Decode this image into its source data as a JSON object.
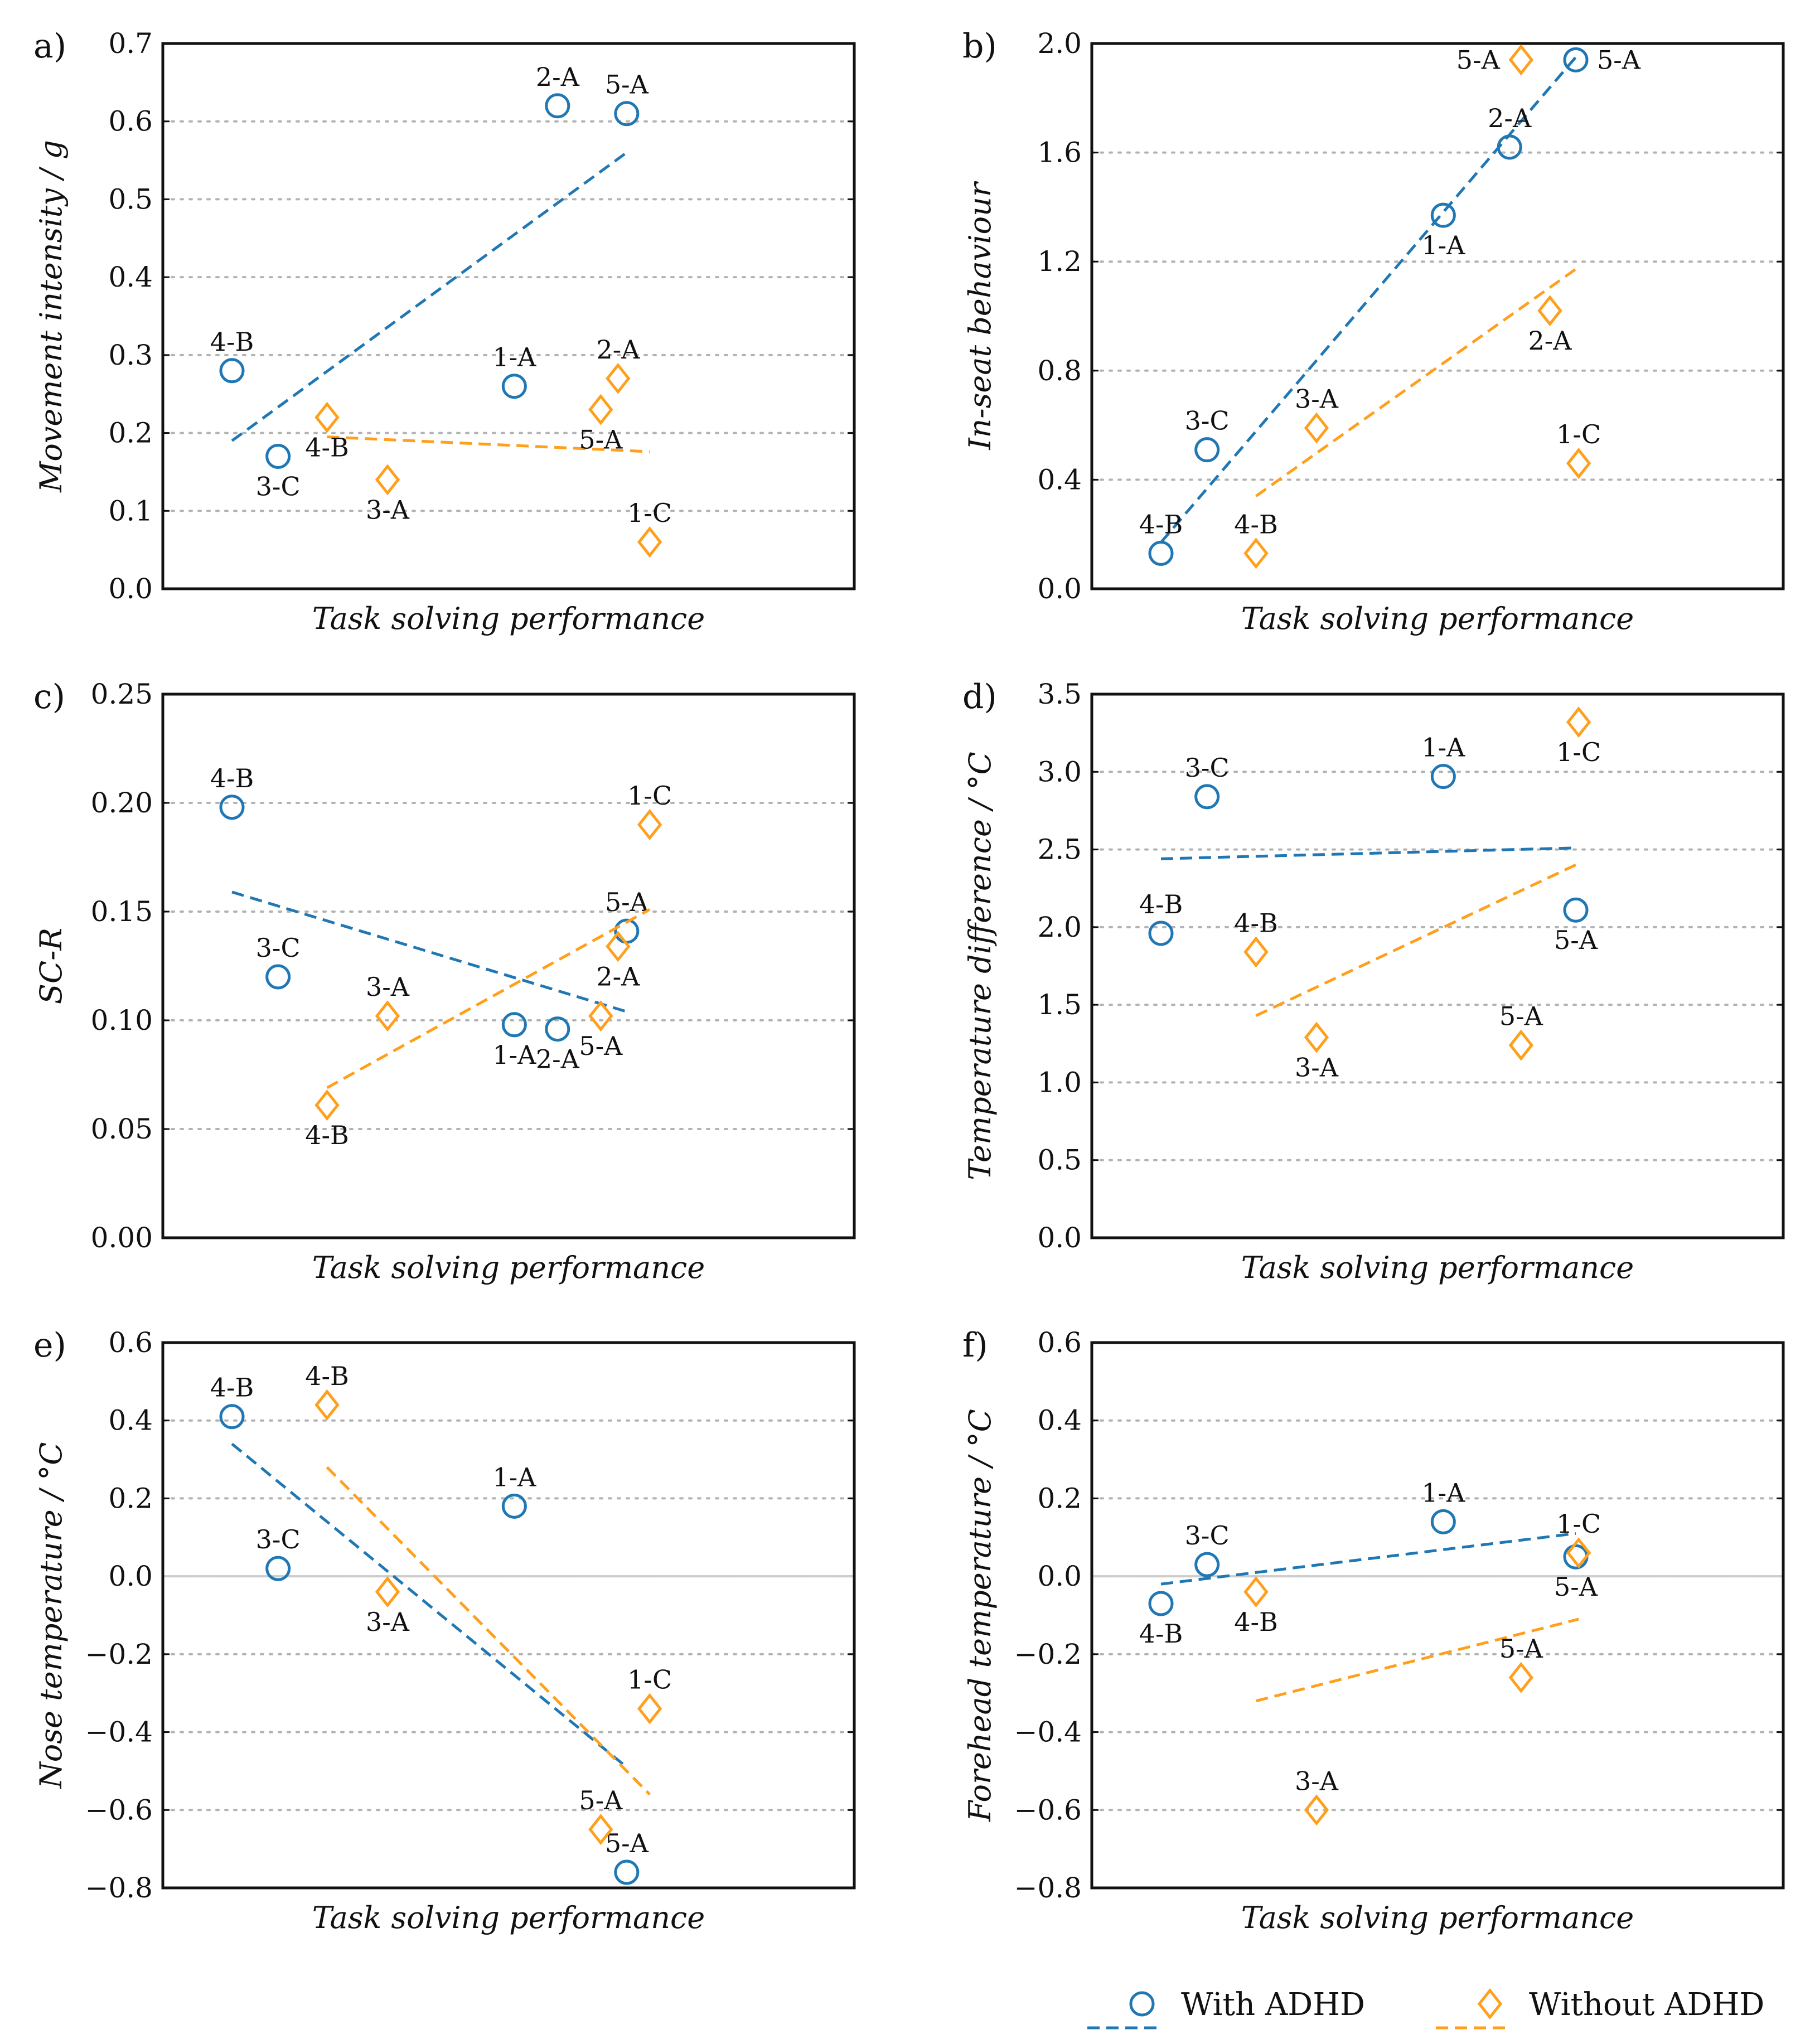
{
  "figure": {
    "series": [
      {
        "key": "adhd",
        "name": "With ADHD",
        "marker": "circle",
        "color": "#1f77b4"
      },
      {
        "key": "non",
        "name": "Without ADHD",
        "marker": "diamond",
        "color": "#ff9f1c"
      }
    ],
    "x_axis_label": "Task solving performance"
  },
  "chart_data": [
    {
      "panel": "a)",
      "type": "scatter",
      "ylabel": "Movement intensity / g",
      "xlabel": "Task solving performance",
      "ylim": [
        0,
        0.7
      ],
      "yticks": [
        "0.0",
        "0.1",
        "0.2",
        "0.3",
        "0.4",
        "0.5",
        "0.6",
        "0.7"
      ],
      "xlim": [
        0,
        12
      ],
      "zero_line": false,
      "series": [
        {
          "name": "With ADHD",
          "points": [
            {
              "x": 1.2,
              "y": 0.28,
              "label": "4-B",
              "pos": "above"
            },
            {
              "x": 2.0,
              "y": 0.17,
              "label": "3-C",
              "pos": "below"
            },
            {
              "x": 6.1,
              "y": 0.26,
              "label": "1-A",
              "pos": "above"
            },
            {
              "x": 6.85,
              "y": 0.62,
              "label": "2-A",
              "pos": "above"
            },
            {
              "x": 8.05,
              "y": 0.61,
              "label": "5-A",
              "pos": "above"
            }
          ],
          "trend": [
            [
              1.2,
              0.19
            ],
            [
              8.05,
              0.56
            ]
          ]
        },
        {
          "name": "Without ADHD",
          "points": [
            {
              "x": 2.85,
              "y": 0.22,
              "label": "4-B",
              "pos": "below-left"
            },
            {
              "x": 3.9,
              "y": 0.14,
              "label": "3-A",
              "pos": "below"
            },
            {
              "x": 7.6,
              "y": 0.23,
              "label": "5-A",
              "pos": "below"
            },
            {
              "x": 7.9,
              "y": 0.27,
              "label": "2-A",
              "pos": "above"
            },
            {
              "x": 8.45,
              "y": 0.06,
              "label": "1-C",
              "pos": "above"
            }
          ],
          "trend": [
            [
              2.85,
              0.195
            ],
            [
              8.45,
              0.176
            ]
          ]
        }
      ]
    },
    {
      "panel": "b)",
      "type": "scatter",
      "ylabel": "In-seat behaviour",
      "xlabel": "Task solving performance",
      "ylim": [
        0,
        2.0
      ],
      "yticks": [
        "0.0",
        "0.4",
        "0.8",
        "1.2",
        "1.6",
        "2.0"
      ],
      "xlim": [
        0,
        12
      ],
      "zero_line": false,
      "series": [
        {
          "name": "With ADHD",
          "points": [
            {
              "x": 1.2,
              "y": 0.13,
              "label": "4-B",
              "pos": "above"
            },
            {
              "x": 2.0,
              "y": 0.51,
              "label": "3-C",
              "pos": "above"
            },
            {
              "x": 6.1,
              "y": 1.37,
              "label": "1-A",
              "pos": "below"
            },
            {
              "x": 7.25,
              "y": 1.62,
              "label": "2-A",
              "pos": "above"
            },
            {
              "x": 8.4,
              "y": 1.94,
              "label": "5-A",
              "pos": "right"
            }
          ],
          "trend": [
            [
              1.2,
              0.17
            ],
            [
              8.4,
              1.95
            ]
          ]
        },
        {
          "name": "Without ADHD",
          "points": [
            {
              "x": 2.85,
              "y": 0.13,
              "label": "4-B",
              "pos": "above"
            },
            {
              "x": 3.9,
              "y": 0.59,
              "label": "3-A",
              "pos": "above"
            },
            {
              "x": 7.95,
              "y": 1.02,
              "label": "2-A",
              "pos": "below"
            },
            {
              "x": 7.45,
              "y": 1.94,
              "label": "5-A",
              "pos": "left"
            },
            {
              "x": 8.45,
              "y": 0.46,
              "label": "1-C",
              "pos": "above"
            }
          ],
          "trend": [
            [
              2.85,
              0.34
            ],
            [
              8.45,
              1.18
            ]
          ]
        }
      ]
    },
    {
      "panel": "c)",
      "type": "scatter",
      "ylabel": "SC-R",
      "xlabel": "Task solving performance",
      "ylim": [
        0,
        0.25
      ],
      "yticks": [
        "0.00",
        "0.05",
        "0.10",
        "0.15",
        "0.20",
        "0.25"
      ],
      "xlim": [
        0,
        12
      ],
      "zero_line": false,
      "series": [
        {
          "name": "With ADHD",
          "points": [
            {
              "x": 1.2,
              "y": 0.198,
              "label": "4-B",
              "pos": "above"
            },
            {
              "x": 2.0,
              "y": 0.12,
              "label": "3-C",
              "pos": "above"
            },
            {
              "x": 6.1,
              "y": 0.098,
              "label": "1-A",
              "pos": "below"
            },
            {
              "x": 6.85,
              "y": 0.096,
              "label": "2-A",
              "pos": "below"
            },
            {
              "x": 8.05,
              "y": 0.141,
              "label": "5-A",
              "pos": "above"
            }
          ],
          "trend": [
            [
              1.2,
              0.159
            ],
            [
              8.05,
              0.104
            ]
          ]
        },
        {
          "name": "Without ADHD",
          "points": [
            {
              "x": 2.85,
              "y": 0.061,
              "label": "4-B",
              "pos": "below"
            },
            {
              "x": 3.9,
              "y": 0.102,
              "label": "3-A",
              "pos": "above"
            },
            {
              "x": 7.6,
              "y": 0.102,
              "label": "5-A",
              "pos": "below"
            },
            {
              "x": 7.9,
              "y": 0.134,
              "label": "2-A",
              "pos": "below"
            },
            {
              "x": 8.45,
              "y": 0.19,
              "label": "1-C",
              "pos": "above"
            }
          ],
          "trend": [
            [
              2.85,
              0.069
            ],
            [
              8.45,
              0.151
            ]
          ]
        }
      ]
    },
    {
      "panel": "d)",
      "type": "scatter",
      "ylabel": "Temperature difference / °C",
      "xlabel": "Task solving performance",
      "ylim": [
        0,
        3.5
      ],
      "yticks": [
        "0.0",
        "0.5",
        "1.0",
        "1.5",
        "2.0",
        "2.5",
        "3.0",
        "3.5"
      ],
      "xlim": [
        0,
        12
      ],
      "zero_line": false,
      "series": [
        {
          "name": "With ADHD",
          "points": [
            {
              "x": 1.2,
              "y": 1.96,
              "label": "4-B",
              "pos": "above"
            },
            {
              "x": 2.0,
              "y": 2.84,
              "label": "3-C",
              "pos": "above"
            },
            {
              "x": 6.1,
              "y": 2.97,
              "label": "1-A",
              "pos": "above"
            },
            {
              "x": 8.4,
              "y": 2.11,
              "label": "5-A",
              "pos": "below"
            }
          ],
          "trend": [
            [
              1.2,
              2.44
            ],
            [
              8.4,
              2.51
            ]
          ]
        },
        {
          "name": "Without ADHD",
          "points": [
            {
              "x": 2.85,
              "y": 1.84,
              "label": "4-B",
              "pos": "above"
            },
            {
              "x": 3.9,
              "y": 1.29,
              "label": "3-A",
              "pos": "below"
            },
            {
              "x": 7.45,
              "y": 1.24,
              "label": "5-A",
              "pos": "above"
            },
            {
              "x": 8.45,
              "y": 3.32,
              "label": "1-C",
              "pos": "below"
            }
          ],
          "trend": [
            [
              2.85,
              1.43
            ],
            [
              8.45,
              2.41
            ]
          ]
        }
      ]
    },
    {
      "panel": "e)",
      "type": "scatter",
      "ylabel": "Nose temperature / °C",
      "xlabel": "Task solving performance",
      "ylim": [
        -0.8,
        0.6
      ],
      "yticks": [
        "−0.8",
        "−0.6",
        "−0.4",
        "−0.2",
        "0.0",
        "0.2",
        "0.4",
        "0.6"
      ],
      "xlim": [
        0,
        12
      ],
      "zero_line": true,
      "series": [
        {
          "name": "With ADHD",
          "points": [
            {
              "x": 1.2,
              "y": 0.41,
              "label": "4-B",
              "pos": "above"
            },
            {
              "x": 2.0,
              "y": 0.02,
              "label": "3-C",
              "pos": "above"
            },
            {
              "x": 6.1,
              "y": 0.18,
              "label": "1-A",
              "pos": "above"
            },
            {
              "x": 8.05,
              "y": -0.76,
              "label": "5-A",
              "pos": "above"
            }
          ],
          "trend": [
            [
              1.2,
              0.34
            ],
            [
              8.05,
              -0.49
            ]
          ]
        },
        {
          "name": "Without ADHD",
          "points": [
            {
              "x": 2.85,
              "y": 0.44,
              "label": "4-B",
              "pos": "above"
            },
            {
              "x": 3.9,
              "y": -0.04,
              "label": "3-A",
              "pos": "below"
            },
            {
              "x": 7.6,
              "y": -0.65,
              "label": "5-A",
              "pos": "above"
            },
            {
              "x": 8.45,
              "y": -0.34,
              "label": "1-C",
              "pos": "above"
            }
          ],
          "trend": [
            [
              2.85,
              0.28
            ],
            [
              8.45,
              -0.56
            ]
          ]
        }
      ]
    },
    {
      "panel": "f)",
      "type": "scatter",
      "ylabel": "Forehead temperature / °C",
      "xlabel": "Task solving performance",
      "ylim": [
        -0.8,
        0.6
      ],
      "yticks": [
        "−0.8",
        "−0.6",
        "−0.4",
        "−0.2",
        "0.0",
        "0.2",
        "0.4",
        "0.6"
      ],
      "xlim": [
        0,
        12
      ],
      "zero_line": true,
      "series": [
        {
          "name": "With ADHD",
          "points": [
            {
              "x": 1.2,
              "y": -0.07,
              "label": "4-B",
              "pos": "below"
            },
            {
              "x": 2.0,
              "y": 0.03,
              "label": "3-C",
              "pos": "above"
            },
            {
              "x": 6.1,
              "y": 0.14,
              "label": "1-A",
              "pos": "above"
            },
            {
              "x": 8.4,
              "y": 0.05,
              "label": "5-A",
              "pos": "below"
            }
          ],
          "trend": [
            [
              1.2,
              -0.02
            ],
            [
              8.4,
              0.11
            ]
          ]
        },
        {
          "name": "Without ADHD",
          "points": [
            {
              "x": 2.85,
              "y": -0.04,
              "label": "4-B",
              "pos": "below"
            },
            {
              "x": 3.9,
              "y": -0.6,
              "label": "3-A",
              "pos": "above"
            },
            {
              "x": 7.45,
              "y": -0.26,
              "label": "5-A",
              "pos": "above"
            },
            {
              "x": 8.45,
              "y": 0.06,
              "label": "1-C",
              "pos": "above"
            }
          ],
          "trend": [
            [
              2.85,
              -0.32
            ],
            [
              8.45,
              -0.11
            ]
          ]
        }
      ]
    }
  ]
}
